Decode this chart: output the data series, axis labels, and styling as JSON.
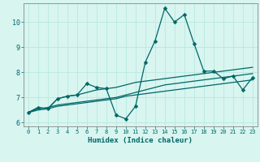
{
  "xlabel": "Humidex (Indice chaleur)",
  "bg_color": "#d8f5f0",
  "grid_color": "#b8e8e0",
  "line_color": "#006666",
  "spine_color": "#888888",
  "xlim": [
    -0.5,
    23.5
  ],
  "ylim": [
    5.85,
    10.75
  ],
  "yticks": [
    6,
    7,
    8,
    9,
    10
  ],
  "xticks": [
    0,
    1,
    2,
    3,
    4,
    5,
    6,
    7,
    8,
    9,
    10,
    11,
    12,
    13,
    14,
    15,
    16,
    17,
    18,
    19,
    20,
    21,
    22,
    23
  ],
  "series": [
    [
      6.4,
      6.6,
      6.55,
      6.95,
      7.05,
      7.1,
      7.55,
      7.4,
      7.35,
      6.3,
      6.15,
      6.65,
      8.4,
      9.25,
      10.55,
      10.0,
      10.3,
      9.15,
      8.05,
      8.05,
      7.75,
      7.85,
      7.3,
      7.8
    ],
    [
      6.4,
      6.6,
      6.55,
      6.95,
      7.05,
      7.1,
      7.2,
      7.3,
      7.35,
      7.4,
      7.5,
      7.6,
      7.65,
      7.7,
      7.75,
      7.8,
      7.85,
      7.9,
      7.95,
      8.0,
      8.05,
      8.1,
      8.15,
      8.2
    ],
    [
      6.4,
      6.55,
      6.6,
      6.7,
      6.75,
      6.8,
      6.85,
      6.9,
      6.95,
      7.0,
      7.1,
      7.2,
      7.3,
      7.4,
      7.5,
      7.55,
      7.6,
      7.65,
      7.7,
      7.75,
      7.8,
      7.85,
      7.9,
      7.95
    ],
    [
      6.4,
      6.5,
      6.55,
      6.65,
      6.7,
      6.75,
      6.8,
      6.85,
      6.9,
      6.95,
      7.05,
      7.1,
      7.15,
      7.2,
      7.25,
      7.3,
      7.35,
      7.4,
      7.45,
      7.5,
      7.55,
      7.6,
      7.65,
      7.7
    ]
  ],
  "linewidth": 0.9,
  "markersize": 2.5,
  "xlabel_fontsize": 6.5,
  "tick_fontsize_x": 5.0,
  "tick_fontsize_y": 6.0
}
